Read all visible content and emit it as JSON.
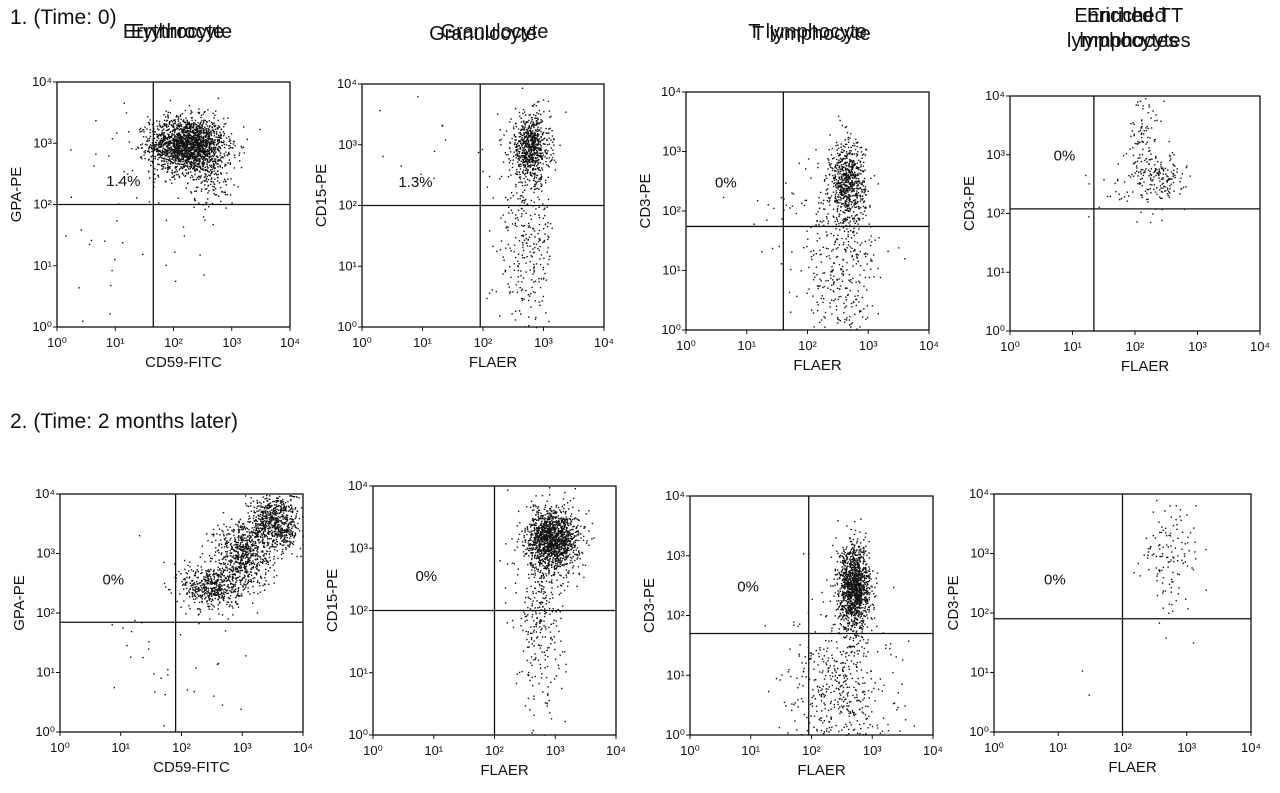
{
  "rows": [
    {
      "title": "1. (Time: 0)"
    },
    {
      "title": "2. (Time: 2 months later)"
    }
  ],
  "chart_data": [
    {
      "type": "scatter",
      "row": 0,
      "title": "Erythrocyte",
      "xlabel": "CD59-FITC",
      "ylabel": "GPA-PE",
      "scale": "log",
      "xlim": [
        1,
        10000
      ],
      "ylim": [
        1,
        10000
      ],
      "x_ticks": [
        "10⁰",
        "10¹",
        "10²",
        "10³",
        "10⁴"
      ],
      "y_ticks": [
        "10⁰",
        "10¹",
        "10²",
        "10³",
        "10⁴"
      ],
      "gate": {
        "x": 45,
        "y": 100
      },
      "annotation": {
        "text": "1.4%",
        "x": 7,
        "y": 200
      },
      "clusters": [
        {
          "cx": 170,
          "cy": 950,
          "sx": 0.2,
          "sy": 0.14,
          "n": 1900
        },
        {
          "cx": 450,
          "cy": 330,
          "sx": 0.12,
          "sy": 0.18,
          "n": 180
        },
        {
          "cx": 30,
          "cy": 900,
          "sx": 0.45,
          "sy": 0.3,
          "n": 30
        },
        {
          "cx": 12,
          "cy": 30,
          "sx": 0.6,
          "sy": 0.5,
          "n": 40
        }
      ]
    },
    {
      "type": "scatter",
      "row": 0,
      "title": "Granulocyte",
      "xlabel": "FLAER",
      "ylabel": "CD15-PE",
      "scale": "log",
      "xlim": [
        1,
        10000
      ],
      "ylim": [
        1,
        10000
      ],
      "x_ticks": [
        "10⁰",
        "10¹",
        "10²",
        "10³",
        "10⁴"
      ],
      "y_ticks": [
        "10⁰",
        "10¹",
        "10²",
        "10³",
        "10⁴"
      ],
      "gate": {
        "x": 90,
        "y": 100
      },
      "annotation": {
        "text": "1.3%",
        "x": 4,
        "y": 200
      },
      "clusters": [
        {
          "cx": 600,
          "cy": 900,
          "sx": 0.1,
          "sy": 0.17,
          "n": 700
        },
        {
          "cx": 500,
          "cy": 30,
          "sx": 0.15,
          "sy": 0.55,
          "n": 350
        },
        {
          "cx": 15,
          "cy": 700,
          "sx": 0.3,
          "sy": 0.3,
          "n": 14
        }
      ]
    },
    {
      "type": "scatter",
      "row": 0,
      "title": "T lymphocyte",
      "xlabel": "FLAER",
      "ylabel": "CD3-PE",
      "scale": "log",
      "xlim": [
        1,
        10000
      ],
      "ylim": [
        1,
        10000
      ],
      "x_ticks": [
        "10⁰",
        "10¹",
        "10²",
        "10³",
        "10⁴"
      ],
      "y_ticks": [
        "10⁰",
        "10¹",
        "10²",
        "10³",
        "10⁴"
      ],
      "gate": {
        "x": 40,
        "y": 55
      },
      "annotation": {
        "text": "0%",
        "x": 3,
        "y": 250
      },
      "clusters": [
        {
          "cx": 450,
          "cy": 300,
          "sx": 0.09,
          "sy": 0.22,
          "n": 700
        },
        {
          "cx": 350,
          "cy": 8,
          "sx": 0.2,
          "sy": 0.55,
          "n": 400
        },
        {
          "cx": 60,
          "cy": 120,
          "sx": 0.25,
          "sy": 0.3,
          "n": 40
        }
      ]
    },
    {
      "type": "scatter",
      "row": 0,
      "title": "Enriched T\nlymphocytes",
      "xlabel": "FLAER",
      "ylabel": "CD3-PE",
      "scale": "log",
      "xlim": [
        1,
        10000
      ],
      "ylim": [
        1,
        10000
      ],
      "x_ticks": [
        "10⁰",
        "10¹",
        "10²",
        "10³",
        "10⁴"
      ],
      "y_ticks": [
        "10⁰",
        "10¹",
        "10²",
        "10³",
        "10⁴"
      ],
      "gate": {
        "x": 22,
        "y": 120
      },
      "annotation": {
        "text": "0%",
        "x": 5,
        "y": 800
      },
      "clusters": [
        {
          "cx": 140,
          "cy": 1600,
          "sx": 0.09,
          "sy": 0.3,
          "n": 120
        },
        {
          "cx": 250,
          "cy": 400,
          "sx": 0.12,
          "sy": 0.12,
          "n": 140
        },
        {
          "cx": 80,
          "cy": 250,
          "sx": 0.2,
          "sy": 0.15,
          "n": 25
        }
      ]
    },
    {
      "type": "scatter",
      "row": 1,
      "title": "Erythrocyte",
      "xlabel": "CD59-FITC",
      "ylabel": "GPA-PE",
      "scale": "log",
      "xlim": [
        1,
        10000
      ],
      "ylim": [
        1,
        10000
      ],
      "x_ticks": [
        "10⁰",
        "10¹",
        "10²",
        "10³",
        "10⁴"
      ],
      "y_ticks": [
        "10⁰",
        "10¹",
        "10²",
        "10³",
        "10⁴"
      ],
      "gate": {
        "x": 80,
        "y": 70
      },
      "annotation": {
        "text": "0%",
        "x": 5,
        "y": 300
      },
      "clusters": [
        {
          "cx": 300,
          "cy": 280,
          "sx": 0.15,
          "sy": 0.12,
          "n": 500
        },
        {
          "cx": 1000,
          "cy": 1000,
          "sx": 0.15,
          "sy": 0.18,
          "n": 700
        },
        {
          "cx": 3500,
          "cy": 3500,
          "sx": 0.13,
          "sy": 0.15,
          "n": 700
        },
        {
          "cx": 120,
          "cy": 6,
          "sx": 0.4,
          "sy": 0.5,
          "n": 40
        }
      ]
    },
    {
      "type": "scatter",
      "row": 1,
      "title": "Granulocyte",
      "xlabel": "FLAER",
      "ylabel": "CD15-PE",
      "scale": "log",
      "xlim": [
        1,
        10000
      ],
      "ylim": [
        1,
        10000
      ],
      "x_ticks": [
        "10⁰",
        "10¹",
        "10²",
        "10³",
        "10⁴"
      ],
      "y_ticks": [
        "10⁰",
        "10¹",
        "10²",
        "10³",
        "10⁴"
      ],
      "gate": {
        "x": 100,
        "y": 100
      },
      "annotation": {
        "text": "0%",
        "x": 5,
        "y": 300
      },
      "clusters": [
        {
          "cx": 900,
          "cy": 1400,
          "sx": 0.13,
          "sy": 0.15,
          "n": 1400
        },
        {
          "cx": 550,
          "cy": 100,
          "sx": 0.13,
          "sy": 0.5,
          "n": 350
        }
      ]
    },
    {
      "type": "scatter",
      "row": 1,
      "title": "T lymphocyte",
      "xlabel": "FLAER",
      "ylabel": "CD3-PE",
      "scale": "log",
      "xlim": [
        1,
        10000
      ],
      "ylim": [
        1,
        10000
      ],
      "x_ticks": [
        "10⁰",
        "10¹",
        "10²",
        "10³",
        "10⁴"
      ],
      "y_ticks": [
        "10⁰",
        "10¹",
        "10²",
        "10³",
        "10⁴"
      ],
      "gate": {
        "x": 90,
        "y": 50
      },
      "annotation": {
        "text": "0%",
        "x": 6,
        "y": 250
      },
      "clusters": [
        {
          "cx": 500,
          "cy": 300,
          "sx": 0.08,
          "sy": 0.22,
          "n": 1300
        },
        {
          "cx": 300,
          "cy": 5,
          "sx": 0.25,
          "sy": 0.5,
          "n": 550
        }
      ]
    },
    {
      "type": "scatter",
      "row": 1,
      "title": "Enriched T\nlymphocytes",
      "xlabel": "FLAER",
      "ylabel": "CD3-PE",
      "scale": "log",
      "xlim": [
        1,
        10000
      ],
      "ylim": [
        1,
        10000
      ],
      "x_ticks": [
        "10⁰",
        "10¹",
        "10²",
        "10³",
        "10⁴"
      ],
      "y_ticks": [
        "10⁰",
        "10¹",
        "10²",
        "10³",
        "10⁴"
      ],
      "gate": {
        "x": 100,
        "y": 80
      },
      "annotation": {
        "text": "0%",
        "x": 6,
        "y": 300
      },
      "clusters": [
        {
          "cx": 550,
          "cy": 900,
          "sx": 0.14,
          "sy": 0.3,
          "n": 130
        },
        {
          "cx": 25,
          "cy": 15,
          "sx": 0.1,
          "sy": 0.1,
          "n": 2
        }
      ]
    }
  ]
}
